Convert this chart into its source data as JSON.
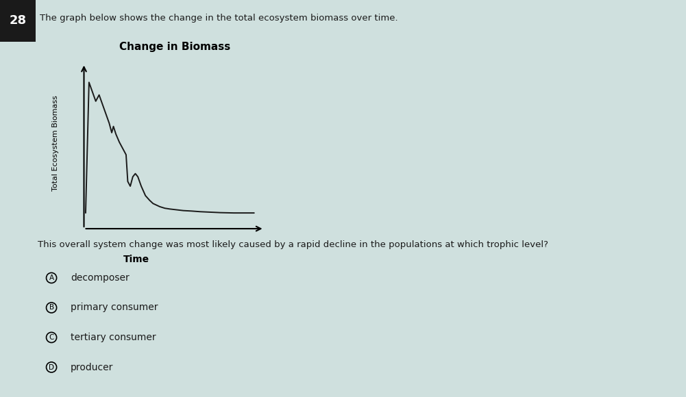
{
  "title": "Change in Biomass",
  "xlabel": "Time",
  "ylabel": "Total Ecosystem Biomass",
  "question_number": "28",
  "question_text": "The graph below shows the change in the total ecosystem biomass over time.",
  "question2": "This overall system change was most likely caused by a rapid decline in the populations at which trophic level?",
  "answers": [
    {
      "label": "A",
      "text": "decomposer"
    },
    {
      "label": "B",
      "text": "primary consumer"
    },
    {
      "label": "C",
      "text": "tertiary consumer"
    },
    {
      "label": "D",
      "text": "producer"
    }
  ],
  "line_color": "#1a1a1a",
  "background_color": "#cfe0de",
  "x_data": [
    0.0,
    0.02,
    0.04,
    0.06,
    0.08,
    0.1,
    0.12,
    0.14,
    0.155,
    0.165,
    0.18,
    0.2,
    0.22,
    0.24,
    0.25,
    0.265,
    0.28,
    0.295,
    0.31,
    0.33,
    0.355,
    0.38,
    0.4,
    0.42,
    0.44,
    0.47,
    0.5,
    0.54,
    0.58,
    0.63,
    0.68,
    0.74,
    0.8,
    0.88,
    0.96,
    1.0
  ],
  "y_data": [
    0.05,
    0.88,
    0.82,
    0.76,
    0.8,
    0.74,
    0.68,
    0.62,
    0.56,
    0.6,
    0.55,
    0.5,
    0.46,
    0.42,
    0.25,
    0.22,
    0.28,
    0.3,
    0.28,
    0.22,
    0.16,
    0.13,
    0.11,
    0.1,
    0.09,
    0.08,
    0.075,
    0.07,
    0.065,
    0.062,
    0.058,
    0.055,
    0.052,
    0.05,
    0.05,
    0.05
  ],
  "num_box_color": "#1a1a1a",
  "num_text_color": "#ffffff",
  "text_color": "#1a1a1a"
}
